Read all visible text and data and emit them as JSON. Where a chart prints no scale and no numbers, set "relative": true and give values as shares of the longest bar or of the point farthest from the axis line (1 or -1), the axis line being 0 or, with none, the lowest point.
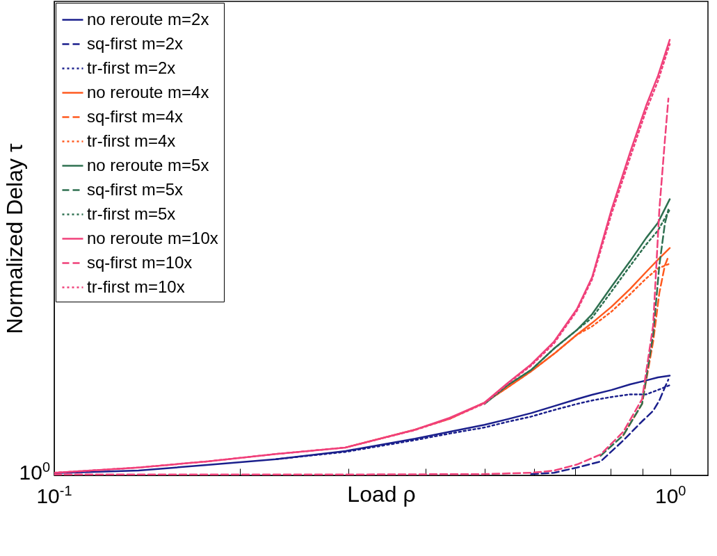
{
  "chart_data": {
    "type": "line",
    "xlabel": "Load ρ",
    "ylabel": "Normalized Delay  τ",
    "relative": true,
    "log": "x",
    "xlim": [
      0.1,
      1.15
    ],
    "xticks": [
      {
        "value": 0.1,
        "label": "10$^{-1}$"
      },
      {
        "value": 0.2,
        "label": null
      },
      {
        "value": 0.3,
        "label": null
      },
      {
        "value": 0.4,
        "label": null
      },
      {
        "value": 0.5,
        "label": null
      },
      {
        "value": 0.6,
        "label": null
      },
      {
        "value": 0.7,
        "label": null
      },
      {
        "value": 0.8,
        "label": null
      },
      {
        "value": 0.9,
        "label": null
      },
      {
        "value": 1,
        "label": "10$^{0}$"
      }
    ],
    "annotations": [
      "10$^{0}$"
    ],
    "legend": "top left",
    "grid": false,
    "x": [
      0.1,
      0.137,
      0.177,
      0.229,
      0.297,
      0.385,
      0.438,
      0.499,
      0.544,
      0.594,
      0.647,
      0.705,
      0.746,
      0.802,
      0.86,
      0.913,
      0.954,
      0.997
    ],
    "series": [
      {
        "name": "no reroute m=2x",
        "color": "#1a1f8c",
        "line_style": "solid",
        "values": [
          0.005,
          0.011,
          0.024,
          0.037,
          0.056,
          0.084,
          0.1,
          0.116,
          0.129,
          0.143,
          0.159,
          0.175,
          0.185,
          0.196,
          0.209,
          0.218,
          0.225,
          0.229
        ]
      },
      {
        "name": "sq-first m=2x",
        "color": "#1a1f8c",
        "line_style": "dashed",
        "x": [
          0.594,
          0.647,
          0.705,
          0.77,
          0.838,
          0.899,
          0.937,
          0.959,
          0.979,
          0.992
        ],
        "values": [
          0.003,
          0.006,
          0.018,
          0.032,
          0.08,
          0.124,
          0.148,
          0.172,
          0.202,
          0.22
        ]
      },
      {
        "name": "tr-first m=2x",
        "color": "#1a1f8c",
        "line_style": "dotted",
        "values": [
          null,
          null,
          null,
          0.037,
          0.054,
          0.081,
          0.096,
          0.11,
          0.123,
          0.135,
          0.15,
          0.164,
          0.172,
          0.18,
          0.186,
          0.186,
          0.196,
          0.207
        ]
      },
      {
        "name": "no reroute m=4x",
        "color": "#ff5a1f",
        "line_style": "solid",
        "values": [
          null,
          null,
          null,
          null,
          0.064,
          0.105,
          0.13,
          0.167,
          0.202,
          0.239,
          0.279,
          0.323,
          0.35,
          0.387,
          0.428,
          0.467,
          0.495,
          0.522
        ]
      },
      {
        "name": "sq-first m=4x",
        "color": "#ff5a1f",
        "line_style": "dashed",
        "x": [
          0.838,
          0.899,
          0.937,
          0.959,
          0.979,
          0.992
        ],
        "values": [
          0.092,
          0.164,
          0.307,
          0.419,
          0.482,
          0.502
        ]
      },
      {
        "name": "tr-first m=4x",
        "color": "#ff5a1f",
        "line_style": "dotted",
        "values": [
          null,
          null,
          null,
          null,
          null,
          null,
          0.13,
          0.167,
          0.202,
          0.239,
          0.279,
          0.323,
          0.342,
          0.376,
          0.416,
          0.452,
          0.475,
          0.486
        ]
      },
      {
        "name": "no reroute m=5x",
        "color": "#2e7050",
        "line_style": "solid",
        "values": [
          null,
          null,
          null,
          null,
          null,
          null,
          null,
          0.164,
          0.207,
          0.242,
          0.291,
          0.334,
          0.37,
          0.433,
          0.492,
          0.545,
          0.58,
          0.634
        ]
      },
      {
        "name": "sq-first m=5x",
        "color": "#2e7050",
        "line_style": "dashed",
        "x": [
          0.77,
          0.838,
          0.899,
          0.937,
          0.959,
          0.979,
          0.992
        ],
        "values": [
          0.045,
          0.092,
          0.164,
          0.323,
          0.482,
          0.578,
          0.61
        ]
      },
      {
        "name": "tr-first m=5x",
        "color": "#2e7050",
        "line_style": "dotted",
        "values": [
          null,
          null,
          null,
          null,
          null,
          null,
          null,
          null,
          0.207,
          0.242,
          0.291,
          0.334,
          0.362,
          0.422,
          0.481,
          0.53,
          0.562,
          0.61
        ]
      },
      {
        "name": "no reroute m=10x",
        "color": "#f0407a",
        "line_style": "solid",
        "values": [
          0.006,
          0.018,
          0.032,
          0.049,
          0.064,
          0.105,
          0.132,
          0.167,
          0.212,
          0.255,
          0.307,
          0.382,
          0.455,
          0.61,
          0.742,
          0.849,
          0.917,
          1.0
        ]
      },
      {
        "name": "sq-first m=10x",
        "color": "#f0407a",
        "line_style": "dashed",
        "x": [
          0.1,
          0.177,
          0.297,
          0.499,
          0.594,
          0.647,
          0.705,
          0.77,
          0.838,
          0.899,
          0.937,
          0.959,
          0.979,
          0.992
        ],
        "values": [
          0.002,
          0.002,
          0.002,
          0.003,
          0.006,
          0.011,
          0.025,
          0.048,
          0.1,
          0.175,
          0.344,
          0.61,
          0.769,
          0.865
        ]
      },
      {
        "name": "tr-first m=10x",
        "color": "#f0407a",
        "line_style": "dotted",
        "values": [
          0.006,
          0.018,
          0.032,
          0.049,
          0.064,
          0.104,
          0.13,
          0.165,
          0.21,
          0.252,
          0.303,
          0.378,
          0.45,
          0.6,
          0.73,
          0.838,
          0.905,
          0.99
        ]
      }
    ]
  }
}
